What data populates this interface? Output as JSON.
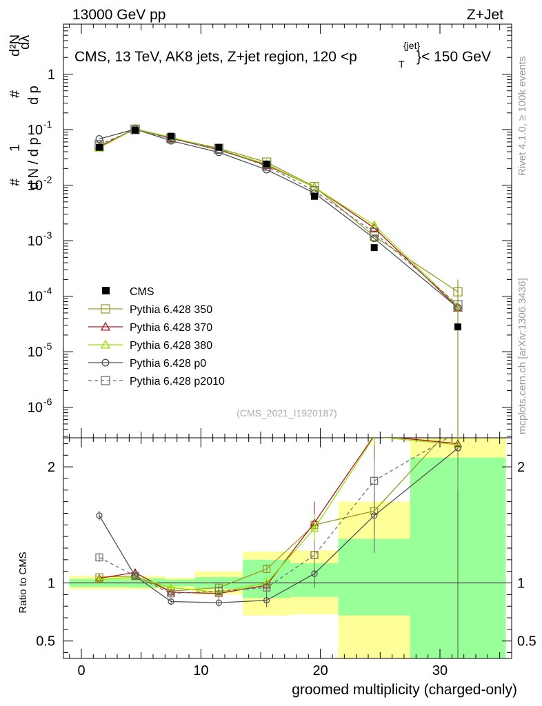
{
  "header": {
    "left": "13000 GeV pp",
    "right": "Z+Jet"
  },
  "side": {
    "rivet": "Rivet 4.1.0, ≥ 100k events",
    "mcplots": "mcplots.cern.ch [arXiv:1306.3436]"
  },
  "chart_data": {
    "type": "scatter",
    "title": "CMS, 13 TeV, AK8 jets, Z+jet region, 120 < p_T^{jet} < 150 GeV",
    "title_main": "CMS, 13 TeV, AK8 jets, Z+jet region, 120 <p",
    "title_sub": "T",
    "title_sup": "{jet}",
    "title_tail": "}< 150 GeV",
    "analysis_tag": "(CMS_2021_I1920187)",
    "ylabel_main": "1/N dN/dpT d²N/dpT dλ",
    "ylabel_parts": {
      "hash": "#",
      "one": "1",
      "dN": "d N / d p",
      "T": "T",
      "d2N": "d²N",
      "dp": "d p",
      "dlambda": "dλ"
    },
    "ylabel_ratio": "Ratio to CMS",
    "xlabel": "groomed multiplicity (charged-only)",
    "xlim": [
      -1.5,
      36
    ],
    "ylim_main_log10": [
      -6.55,
      0.9
    ],
    "ylim_ratio": [
      0.35,
      2.25
    ],
    "x_ticks": [
      0,
      10,
      20,
      30
    ],
    "y_main_ticks": [
      {
        "exp": "1",
        "v": 1
      },
      {
        "exp": "-1",
        "v": 0.1
      },
      {
        "exp": "-2",
        "v": 0.01
      },
      {
        "exp": "-3",
        "v": 0.001
      },
      {
        "exp": "-4",
        "v": 0.0001
      },
      {
        "exp": "-5",
        "v": 1e-05
      },
      {
        "exp": "-6",
        "v": 1e-06
      }
    ],
    "y_ratio_ticks": [
      "2",
      "1",
      "0.5"
    ],
    "y_ratio_tick_values": [
      2,
      1,
      0.5
    ],
    "bins": [
      [
        -1,
        4
      ],
      [
        4,
        7
      ],
      [
        7,
        9.5
      ],
      [
        9.5,
        13.5
      ],
      [
        13.5,
        17.5
      ],
      [
        17.5,
        21.5
      ],
      [
        21.5,
        27.5
      ],
      [
        27.5,
        35.5
      ]
    ],
    "x_points": [
      1.5,
      4.5,
      7.5,
      11.5,
      15.5,
      19.5,
      24.5,
      31.5
    ],
    "cms": {
      "name": "CMS",
      "values": [
        0.048,
        0.098,
        0.076,
        0.048,
        0.024,
        0.0063,
        0.00075,
        2.8e-05
      ],
      "ratio_band_inner": [
        [
          0.965,
          1.035
        ],
        [
          0.96,
          1.04
        ],
        [
          0.97,
          1.03
        ],
        [
          0.95,
          1.05
        ],
        [
          0.87,
          1.2
        ],
        [
          0.88,
          1.17
        ],
        [
          0.72,
          1.38
        ],
        [
          0.35,
          2.08
        ]
      ],
      "ratio_band_outer": [
        [
          0.945,
          1.06
        ],
        [
          0.945,
          1.06
        ],
        [
          0.945,
          1.045
        ],
        [
          0.9,
          1.1
        ],
        [
          0.72,
          1.27
        ],
        [
          0.73,
          1.28
        ],
        [
          0.35,
          1.7
        ],
        [
          0.35,
          2.25
        ]
      ]
    },
    "series": [
      {
        "name": "Pythia 6.428 350",
        "color": "#9a9a2a",
        "marker": "square",
        "dash": false,
        "values": [
          0.05,
          0.102,
          0.071,
          0.046,
          0.026,
          0.0094,
          0.0012,
          0.00012
        ],
        "ratio": [
          1.05,
          1.06,
          0.93,
          0.96,
          1.12,
          1.5,
          1.62,
          2.4
        ],
        "ratio_err": [
          0.02,
          0.02,
          0.02,
          0.04,
          0.04,
          0.08,
          0.18,
          0.5
        ]
      },
      {
        "name": "Pythia 6.428 370",
        "color": "#a8182a",
        "marker": "triangle",
        "dash": false,
        "values": [
          0.049,
          0.104,
          0.07,
          0.043,
          0.023,
          0.0092,
          0.0017,
          6.2e-05
        ],
        "ratio": [
          1.04,
          1.09,
          0.92,
          0.91,
          0.98,
          1.52,
          2.27,
          2.2
        ],
        "ratio_err": [
          0.02,
          0.02,
          0.02,
          0.04,
          0.04,
          0.18,
          0.2,
          0.5
        ]
      },
      {
        "name": "Pythia 6.428 380",
        "color": "#99e000",
        "marker": "triangle",
        "dash": false,
        "values": [
          0.047,
          0.103,
          0.073,
          0.044,
          0.024,
          0.0091,
          0.0019,
          6.5e-05
        ],
        "ratio": [
          1.03,
          1.05,
          0.96,
          0.92,
          1.0,
          1.47,
          2.26,
          2.19
        ],
        "ratio_err": [
          0.02,
          0.02,
          0.02,
          0.04,
          0.04,
          0.12,
          0.2,
          0.5
        ]
      },
      {
        "name": "Pythia 6.428 p0",
        "color": "#505050",
        "marker": "circle",
        "dash": false,
        "values": [
          0.068,
          0.102,
          0.063,
          0.039,
          0.019,
          0.0072,
          0.0011,
          6.2e-05
        ],
        "ratio": [
          1.58,
          1.06,
          0.84,
          0.83,
          0.85,
          1.08,
          1.58,
          2.16
        ],
        "ratio_err": [
          0.04,
          0.02,
          0.03,
          0.04,
          0.06,
          0.12,
          0.32,
          2.0
        ]
      },
      {
        "name": "Pythia 6.428 p2010",
        "color": "#707070",
        "marker": "square",
        "dash": true,
        "values": [
          0.054,
          0.1,
          0.069,
          0.045,
          0.022,
          0.0079,
          0.0014,
          7e-05
        ],
        "ratio": [
          1.22,
          1.06,
          0.91,
          0.93,
          0.96,
          1.24,
          1.88,
          2.3
        ],
        "ratio_err": [
          0.04,
          0.02,
          0.02,
          0.04,
          0.06,
          0.12,
          0.3,
          0.5
        ]
      }
    ]
  }
}
